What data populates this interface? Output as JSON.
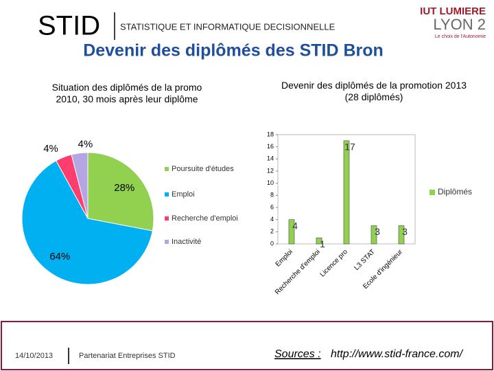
{
  "header": {
    "logo": "STID",
    "subtitle": "STATISTIQUE ET INFORMATIQUE DECISIONNELLE",
    "title": "Devenir des diplômés des STID Bron",
    "brand_top": "IUT LUMIERE",
    "brand_bottom": "LYON 2",
    "brand_tag": "Le choix de l'Autonomie"
  },
  "footer": {
    "date": "14/10/2013",
    "text": "Partenariat Entreprises STID",
    "sources_label": "Sources :",
    "sources_url": "http://www.stid-france.com/"
  },
  "chart_data": [
    {
      "type": "pie",
      "title": "Situation des diplômés de la promo 2010, 30 mois après leur diplôme",
      "categories": [
        "Poursuite d'études",
        "Emploi",
        "Recherche d'emploi",
        "Inactivité"
      ],
      "values": [
        28,
        64,
        4,
        4
      ],
      "value_labels": [
        "28%",
        "64%",
        "4%",
        "4%"
      ],
      "colors": [
        "#92d050",
        "#00b0f0",
        "#ff3d6e",
        "#b3a6e3"
      ]
    },
    {
      "type": "bar",
      "title": "Devenir des diplômés de la promotion 2013 (28 diplômés)",
      "categories": [
        "Emploi",
        "Recherche d'emploi",
        "Licence pro",
        "L3 STAT",
        "Ecole d'ingénieur"
      ],
      "series": [
        {
          "name": "Diplômés",
          "color": "#92d050",
          "values": [
            4,
            1,
            17,
            3,
            3
          ]
        }
      ],
      "ylim": [
        0,
        18
      ],
      "yticks": [
        0,
        2,
        4,
        6,
        8,
        10,
        12,
        14,
        16,
        18
      ],
      "legend": "right"
    }
  ]
}
